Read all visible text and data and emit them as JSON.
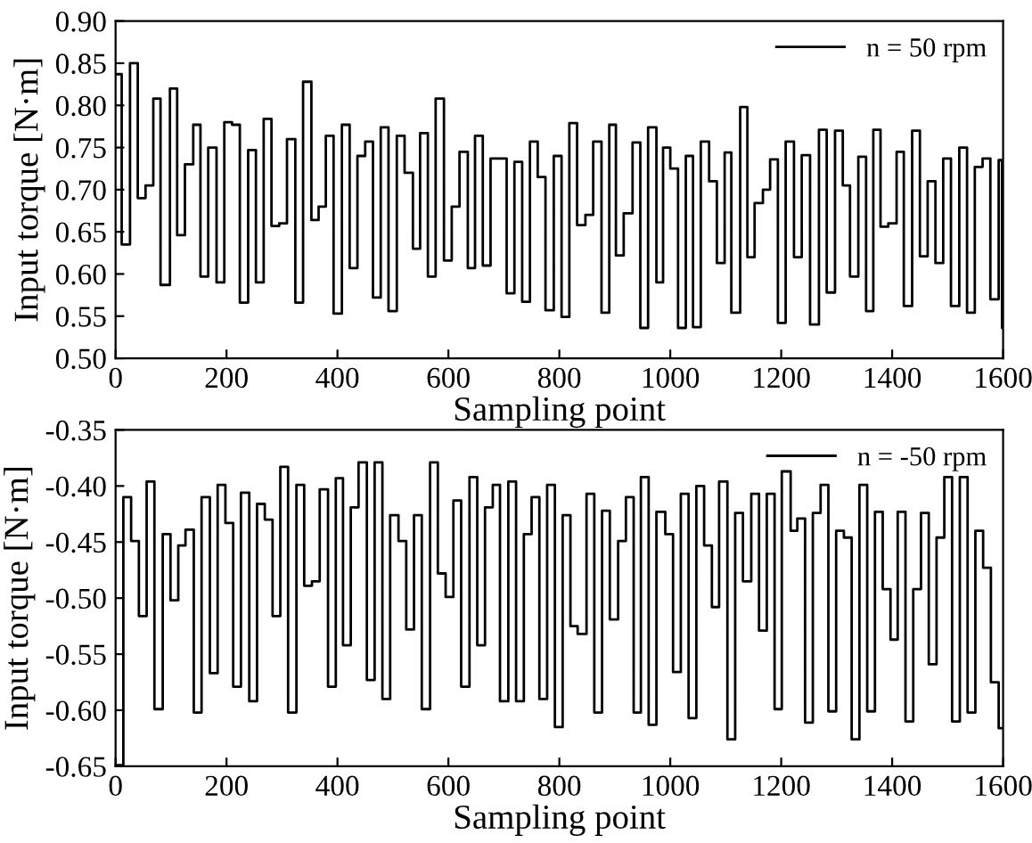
{
  "chart_data": [
    {
      "type": "step",
      "xlabel": "Sampling point",
      "ylabel": "Input torque [N·m]",
      "xlim": [
        0,
        1600
      ],
      "xticks": [
        0,
        200,
        400,
        600,
        800,
        1000,
        1200,
        1400,
        1600
      ],
      "ylim": [
        0.5,
        0.9
      ],
      "yticks": [
        {
          "value": 0.5,
          "label": "0.50"
        },
        {
          "value": 0.55,
          "label": "0.55"
        },
        {
          "value": 0.6,
          "label": "0.60"
        },
        {
          "value": 0.65,
          "label": "0.65"
        },
        {
          "value": 0.7,
          "label": "0.70"
        },
        {
          "value": 0.75,
          "label": "0.75"
        },
        {
          "value": 0.8,
          "label": "0.80"
        },
        {
          "value": 0.85,
          "label": "0.85"
        },
        {
          "value": 0.9,
          "label": "0.90"
        }
      ],
      "grid": false,
      "legend": "top right",
      "series": [
        {
          "name": "n = 50 rpm",
          "color": "#000000",
          "x": [
            0,
            11,
            26,
            40,
            54,
            68,
            81,
            98,
            111,
            125,
            140,
            153,
            167,
            182,
            196,
            210,
            224,
            239,
            253,
            267,
            281,
            295,
            309,
            324,
            338,
            353,
            366,
            379,
            393,
            408,
            422,
            436,
            450,
            464,
            478,
            492,
            507,
            521,
            536,
            549,
            563,
            577,
            592,
            606,
            620,
            635,
            648,
            662,
            676,
            705,
            719,
            733,
            747,
            761,
            775,
            790,
            804,
            818,
            832,
            847,
            861,
            876,
            890,
            902,
            916,
            932,
            946,
            960,
            975,
            987,
            1000,
            1014,
            1028,
            1041,
            1055,
            1070,
            1084,
            1098,
            1110,
            1126,
            1139,
            1152,
            1167,
            1180,
            1194,
            1208,
            1223,
            1237,
            1252,
            1268,
            1282,
            1297,
            1311,
            1324,
            1339,
            1353,
            1366,
            1379,
            1393,
            1408,
            1421,
            1436,
            1450,
            1464,
            1478,
            1492,
            1506,
            1521,
            1535,
            1549,
            1563,
            1577,
            1592,
            1598,
            1600
          ],
          "values": [
            0.837,
            0.635,
            0.85,
            0.69,
            0.705,
            0.808,
            0.587,
            0.82,
            0.646,
            0.73,
            0.777,
            0.597,
            0.75,
            0.59,
            0.78,
            0.777,
            0.566,
            0.747,
            0.59,
            0.784,
            0.657,
            0.66,
            0.76,
            0.566,
            0.828,
            0.664,
            0.68,
            0.764,
            0.553,
            0.777,
            0.607,
            0.74,
            0.757,
            0.572,
            0.774,
            0.556,
            0.764,
            0.72,
            0.63,
            0.767,
            0.597,
            0.808,
            0.616,
            0.68,
            0.745,
            0.607,
            0.764,
            0.61,
            0.737,
            0.577,
            0.733,
            0.567,
            0.757,
            0.715,
            0.557,
            0.74,
            0.549,
            0.779,
            0.658,
            0.67,
            0.757,
            0.554,
            0.777,
            0.622,
            0.672,
            0.756,
            0.536,
            0.774,
            0.59,
            0.75,
            0.725,
            0.536,
            0.74,
            0.537,
            0.757,
            0.71,
            0.613,
            0.744,
            0.554,
            0.798,
            0.62,
            0.684,
            0.7,
            0.736,
            0.542,
            0.757,
            0.62,
            0.741,
            0.54,
            0.771,
            0.578,
            0.77,
            0.705,
            0.597,
            0.739,
            0.556,
            0.771,
            0.656,
            0.66,
            0.745,
            0.562,
            0.77,
            0.621,
            0.71,
            0.613,
            0.737,
            0.562,
            0.75,
            0.554,
            0.727,
            0.737,
            0.57,
            0.735,
            0.536,
            0.536
          ]
        }
      ]
    },
    {
      "type": "step",
      "xlabel": "Sampling point",
      "ylabel": "Input torque [N·m]",
      "xlim": [
        0,
        1600
      ],
      "xticks": [
        0,
        200,
        400,
        600,
        800,
        1000,
        1200,
        1400,
        1600
      ],
      "ylim": [
        -0.65,
        -0.35
      ],
      "yticks": [
        {
          "value": -0.65,
          "label": "-0.65"
        },
        {
          "value": -0.6,
          "label": "-0.60"
        },
        {
          "value": -0.55,
          "label": "-0.55"
        },
        {
          "value": -0.5,
          "label": "-0.50"
        },
        {
          "value": -0.45,
          "label": "-0.45"
        },
        {
          "value": -0.4,
          "label": "-0.40"
        },
        {
          "value": -0.35,
          "label": "-0.35"
        }
      ],
      "grid": false,
      "legend": "top right",
      "series": [
        {
          "name": "n = -50 rpm",
          "color": "#000000",
          "x": [
            0,
            14,
            28,
            42,
            56,
            70,
            85,
            99,
            113,
            126,
            141,
            155,
            170,
            184,
            198,
            212,
            226,
            241,
            255,
            269,
            283,
            297,
            311,
            326,
            340,
            354,
            368,
            383,
            397,
            410,
            424,
            438,
            453,
            467,
            481,
            495,
            510,
            524,
            538,
            552,
            567,
            581,
            595,
            609,
            623,
            638,
            652,
            666,
            680,
            693,
            708,
            722,
            736,
            750,
            764,
            778,
            792,
            806,
            820,
            833,
            849,
            863,
            877,
            891,
            906,
            920,
            934,
            947,
            961,
            975,
            991,
            1005,
            1019,
            1033,
            1047,
            1061,
            1075,
            1088,
            1103,
            1117,
            1131,
            1146,
            1160,
            1174,
            1188,
            1201,
            1217,
            1229,
            1243,
            1257,
            1271,
            1285,
            1299,
            1313,
            1327,
            1341,
            1355,
            1369,
            1383,
            1397,
            1410,
            1424,
            1438,
            1452,
            1466,
            1480,
            1494,
            1508,
            1522,
            1536,
            1550,
            1564,
            1578,
            1592,
            1600
          ],
          "values": [
            -0.649,
            -0.41,
            -0.449,
            -0.516,
            -0.396,
            -0.599,
            -0.443,
            -0.502,
            -0.453,
            -0.439,
            -0.602,
            -0.41,
            -0.567,
            -0.399,
            -0.433,
            -0.579,
            -0.406,
            -0.592,
            -0.416,
            -0.43,
            -0.516,
            -0.383,
            -0.602,
            -0.399,
            -0.489,
            -0.485,
            -0.403,
            -0.579,
            -0.393,
            -0.542,
            -0.419,
            -0.379,
            -0.573,
            -0.379,
            -0.59,
            -0.426,
            -0.449,
            -0.528,
            -0.426,
            -0.599,
            -0.379,
            -0.478,
            -0.499,
            -0.413,
            -0.579,
            -0.392,
            -0.542,
            -0.419,
            -0.399,
            -0.592,
            -0.396,
            -0.592,
            -0.443,
            -0.41,
            -0.59,
            -0.399,
            -0.615,
            -0.426,
            -0.525,
            -0.532,
            -0.407,
            -0.602,
            -0.422,
            -0.519,
            -0.449,
            -0.41,
            -0.602,
            -0.392,
            -0.613,
            -0.423,
            -0.443,
            -0.566,
            -0.407,
            -0.607,
            -0.4,
            -0.453,
            -0.508,
            -0.396,
            -0.626,
            -0.424,
            -0.485,
            -0.407,
            -0.529,
            -0.407,
            -0.599,
            -0.387,
            -0.44,
            -0.429,
            -0.611,
            -0.424,
            -0.399,
            -0.601,
            -0.44,
            -0.446,
            -0.626,
            -0.399,
            -0.601,
            -0.423,
            -0.492,
            -0.537,
            -0.423,
            -0.61,
            -0.492,
            -0.424,
            -0.559,
            -0.446,
            -0.392,
            -0.61,
            -0.392,
            -0.602,
            -0.44,
            -0.473,
            -0.575,
            -0.616,
            -0.616
          ]
        }
      ]
    }
  ]
}
